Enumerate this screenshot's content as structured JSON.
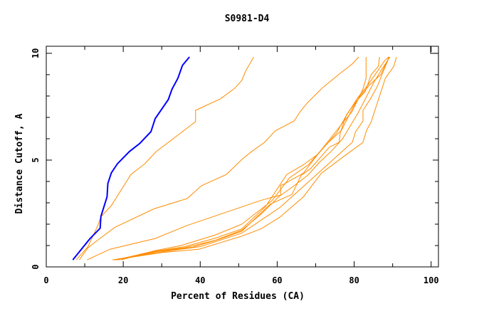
{
  "chart_data": {
    "type": "line",
    "title": "S0981-D4",
    "xlabel": "Percent of Residues (CA)",
    "ylabel": "Distance Cutoff, A",
    "xlim": [
      0,
      101.9
    ],
    "ylim": [
      0,
      10.33
    ],
    "x_ticks": [
      "0",
      "20",
      "40",
      "60",
      "80",
      "100"
    ],
    "x_tick_values": [
      0,
      20,
      40,
      60,
      80,
      100
    ],
    "y_ticks": [
      "0",
      "5",
      "10"
    ],
    "y_tick_values": [
      0,
      5,
      10
    ],
    "grid": false,
    "colors": {
      "highlight": "#0000ff",
      "others": "#ff8c00"
    },
    "series": [
      {
        "name": "orange-1",
        "color": "#ff8c00",
        "points": [
          [
            7.8,
            0.33
          ],
          [
            10.8,
            0.94
          ],
          [
            13.4,
            1.94
          ],
          [
            14.2,
            2.35
          ],
          [
            16.9,
            2.87
          ],
          [
            22,
            4.33
          ],
          [
            25.6,
            4.83
          ],
          [
            28.6,
            5.4
          ],
          [
            38.8,
            6.8
          ],
          [
            38.8,
            7.33
          ],
          [
            45.3,
            7.87
          ],
          [
            49,
            8.37
          ],
          [
            50.8,
            8.73
          ],
          [
            51.8,
            9.17
          ],
          [
            53.9,
            9.83
          ]
        ]
      },
      {
        "name": "orange-2",
        "color": "#ff8c00",
        "points": [
          [
            10.6,
            0.33
          ],
          [
            16.6,
            0.83
          ],
          [
            28.3,
            1.33
          ],
          [
            36.6,
            1.94
          ],
          [
            50.8,
            2.81
          ],
          [
            55.7,
            3.11
          ],
          [
            58.2,
            3.24
          ],
          [
            60.9,
            3.36
          ],
          [
            60.9,
            3.81
          ],
          [
            61.9,
            3.89
          ],
          [
            66.8,
            4.39
          ],
          [
            70.6,
            5.28
          ],
          [
            75.2,
            6.33
          ],
          [
            79.5,
            7.28
          ],
          [
            82.3,
            8.33
          ],
          [
            83.1,
            8.83
          ],
          [
            83.1,
            9.83
          ]
        ]
      },
      {
        "name": "orange-3",
        "color": "#ff8c00",
        "points": [
          [
            8.6,
            0.33
          ],
          [
            10.8,
            0.89
          ],
          [
            13.9,
            1.33
          ],
          [
            17.9,
            1.86
          ],
          [
            28,
            2.72
          ],
          [
            36.6,
            3.2
          ],
          [
            40.3,
            3.8
          ],
          [
            46.8,
            4.33
          ],
          [
            50.8,
            5.03
          ],
          [
            53.3,
            5.39
          ],
          [
            56.7,
            5.83
          ],
          [
            59.5,
            6.37
          ],
          [
            64.4,
            6.83
          ],
          [
            66.1,
            7.3
          ],
          [
            67.8,
            7.67
          ],
          [
            71.8,
            8.39
          ],
          [
            76.7,
            9.11
          ],
          [
            79.5,
            9.5
          ],
          [
            81.2,
            9.83
          ]
        ]
      },
      {
        "name": "orange-4",
        "color": "#ff8c00",
        "points": [
          [
            17.6,
            0.33
          ],
          [
            30,
            0.67
          ],
          [
            39.7,
            0.83
          ],
          [
            50.8,
            1.44
          ],
          [
            55.8,
            1.78
          ],
          [
            60.7,
            2.33
          ],
          [
            66.8,
            3.28
          ],
          [
            71.5,
            4.39
          ],
          [
            77.3,
            5.17
          ],
          [
            82.3,
            5.83
          ],
          [
            83.2,
            6.39
          ],
          [
            84.4,
            6.78
          ],
          [
            86.3,
            7.83
          ],
          [
            88.1,
            8.83
          ],
          [
            90.3,
            9.39
          ],
          [
            91,
            9.83
          ]
        ]
      },
      {
        "name": "orange-5",
        "color": "#ff8c00",
        "points": [
          [
            17.2,
            0.33
          ],
          [
            30,
            0.7
          ],
          [
            40,
            0.95
          ],
          [
            50.8,
            1.58
          ],
          [
            60.7,
            2.78
          ],
          [
            69.3,
            4.17
          ],
          [
            79.5,
            5.83
          ],
          [
            80.4,
            6.33
          ],
          [
            82.3,
            6.83
          ],
          [
            82.3,
            7.33
          ],
          [
            84.1,
            7.83
          ],
          [
            86,
            8.44
          ],
          [
            88.1,
            9.39
          ],
          [
            89.1,
            9.83
          ]
        ]
      },
      {
        "name": "orange-6",
        "color": "#ff8c00",
        "points": [
          [
            18,
            0.33
          ],
          [
            29,
            0.72
          ],
          [
            38,
            0.92
          ],
          [
            45,
            1.3
          ],
          [
            50.8,
            1.67
          ],
          [
            58.2,
            2.94
          ],
          [
            63.8,
            3.39
          ],
          [
            65,
            3.83
          ],
          [
            66.2,
            4.28
          ],
          [
            68.7,
            4.61
          ],
          [
            73.6,
            5.61
          ],
          [
            76.1,
            5.83
          ],
          [
            76.4,
            6.28
          ],
          [
            77.9,
            7.06
          ],
          [
            81,
            7.94
          ],
          [
            83.5,
            8.5
          ],
          [
            88,
            9.67
          ],
          [
            89,
            9.83
          ]
        ]
      },
      {
        "name": "orange-7",
        "color": "#ff8c00",
        "points": [
          [
            18.6,
            0.33
          ],
          [
            28,
            0.72
          ],
          [
            36,
            0.95
          ],
          [
            44,
            1.35
          ],
          [
            50.8,
            1.78
          ],
          [
            57,
            2.83
          ],
          [
            62.5,
            4.33
          ],
          [
            66.8,
            4.78
          ],
          [
            70.6,
            5.28
          ],
          [
            75.5,
            6.28
          ],
          [
            78.2,
            7.17
          ],
          [
            80.4,
            7.72
          ],
          [
            82.9,
            8.22
          ],
          [
            84.4,
            9.0
          ],
          [
            86.3,
            9.39
          ],
          [
            86.6,
            9.83
          ]
        ]
      },
      {
        "name": "orange-8",
        "color": "#ff8c00",
        "points": [
          [
            19.5,
            0.33
          ],
          [
            28,
            0.75
          ],
          [
            35,
            1.0
          ],
          [
            44,
            1.5
          ],
          [
            50.8,
            2.0
          ],
          [
            58.7,
            3.11
          ],
          [
            63.2,
            4.17
          ],
          [
            68.1,
            4.78
          ],
          [
            72.4,
            5.67
          ],
          [
            76.7,
            6.39
          ],
          [
            79.8,
            7.5
          ],
          [
            81.6,
            8.0
          ],
          [
            83.9,
            8.5
          ],
          [
            86.9,
            9.0
          ],
          [
            88.2,
            9.5
          ],
          [
            89.1,
            9.83
          ]
        ]
      },
      {
        "name": "orange-9",
        "color": "#ff8c00",
        "points": [
          [
            18.2,
            0.33
          ],
          [
            27,
            0.7
          ],
          [
            36,
            0.9
          ],
          [
            44,
            1.25
          ],
          [
            50.8,
            1.72
          ],
          [
            56,
            2.5
          ],
          [
            60.5,
            3.3
          ],
          [
            64,
            3.75
          ],
          [
            68,
            4.3
          ],
          [
            71,
            4.9
          ],
          [
            74,
            5.4
          ],
          [
            77,
            6.0
          ],
          [
            79,
            6.6
          ],
          [
            81,
            7.2
          ],
          [
            83,
            7.9
          ],
          [
            85,
            8.6
          ],
          [
            87,
            9.2
          ],
          [
            89.3,
            9.83
          ]
        ]
      },
      {
        "name": "blue-highlight",
        "color": "#0000ff",
        "points": [
          [
            6.9,
            0.33
          ],
          [
            11.4,
            1.33
          ],
          [
            14.0,
            1.81
          ],
          [
            14.2,
            2.37
          ],
          [
            15.8,
            3.28
          ],
          [
            16.0,
            3.9
          ],
          [
            16.9,
            4.4
          ],
          [
            18.5,
            4.83
          ],
          [
            21.6,
            5.4
          ],
          [
            24.3,
            5.78
          ],
          [
            27.2,
            6.33
          ],
          [
            28.3,
            6.94
          ],
          [
            31.7,
            7.83
          ],
          [
            32.7,
            8.33
          ],
          [
            34.2,
            8.83
          ],
          [
            35.4,
            9.44
          ],
          [
            37.2,
            9.83
          ]
        ]
      }
    ]
  }
}
